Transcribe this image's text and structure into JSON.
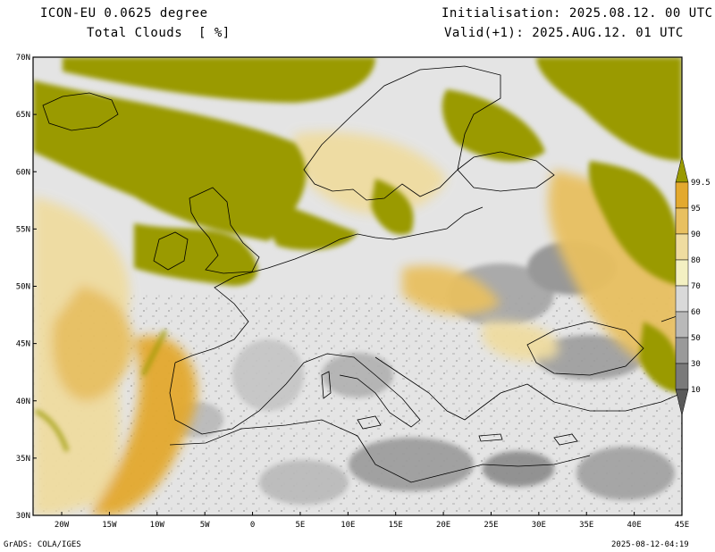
{
  "header": {
    "model": "ICON-EU 0.0625 degree",
    "variable": "Total Clouds  [ %]",
    "init": "Initialisation: 2025.08.12. 00 UTC",
    "valid": "Valid(+1): 2025.AUG.12. 01 UTC"
  },
  "map": {
    "lon_range": [
      -23,
      45
    ],
    "lat_range": [
      30,
      70
    ],
    "lat_labels": [
      "30N",
      "35N",
      "40N",
      "45N",
      "50N",
      "55N",
      "60N",
      "65N",
      "70N"
    ],
    "lon_labels": [
      "20W",
      "15W",
      "10W",
      "5W",
      "0",
      "5E",
      "10E",
      "15E",
      "20E",
      "25E",
      "30E",
      "35E",
      "40E",
      "45E"
    ]
  },
  "colorbar": {
    "levels": [
      "10",
      "30",
      "50",
      "60",
      "70",
      "80",
      "90",
      "95",
      "99.5"
    ],
    "colors": [
      "#5a5a5a",
      "#7a7a7a",
      "#9a9a9a",
      "#b9b9b9",
      "#d9d9d9",
      "#f3f0c2",
      "#efdca0",
      "#e8c060",
      "#e3a92e",
      "#9a9a00"
    ]
  },
  "footer": {
    "left": "GrADS: COLA/IGES",
    "right": "2025-08-12-04:19"
  }
}
